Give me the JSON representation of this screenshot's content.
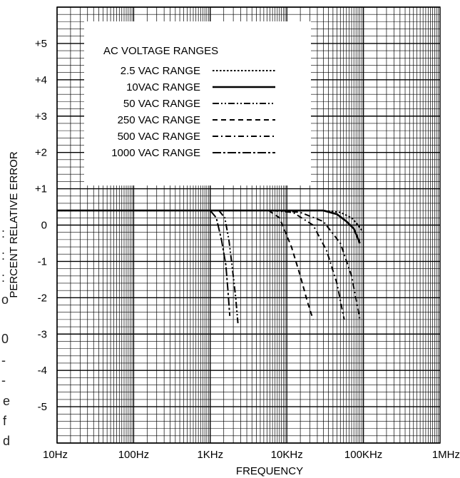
{
  "chart_data": {
    "type": "line",
    "title": "",
    "xlabel": "FREQUENCY",
    "ylabel": "PERCENT RELATIVE ERROR",
    "xscale": "log",
    "xlim": [
      10,
      1000000
    ],
    "ylim": [
      -6,
      6
    ],
    "grid": true,
    "x_tick_labels": [
      "10Hz",
      "100Hz",
      "1KHz",
      "10KHz",
      "100KHz",
      "1MHz"
    ],
    "x_tick_values": [
      10,
      100,
      1000,
      10000,
      100000,
      1000000
    ],
    "y_tick_labels": [
      "+5",
      "+4",
      "+3",
      "+2",
      "+1",
      "0",
      "-1",
      "-2",
      "-3",
      "-4",
      "-5"
    ],
    "y_tick_values": [
      5,
      4,
      3,
      2,
      1,
      0,
      -1,
      -2,
      -3,
      -4,
      -5
    ],
    "legend": {
      "title": "AC VOLTAGE RANGES",
      "placement": "top-left"
    },
    "series": [
      {
        "name": "2.5 VAC RANGE",
        "dash": "dotted",
        "x": [
          10,
          30000,
          50000,
          70000,
          85000,
          100000
        ],
        "y": [
          0.4,
          0.4,
          0.35,
          0.2,
          0.0,
          -0.2
        ]
      },
      {
        "name": "10VAC RANGE",
        "dash": "solid",
        "x": [
          10,
          30000,
          45000,
          60000,
          75000,
          90000
        ],
        "y": [
          0.4,
          0.4,
          0.3,
          0.1,
          -0.1,
          -0.5
        ]
      },
      {
        "name": "50 VAC RANGE",
        "dash": "dash-dot-dot",
        "x": [
          1300,
          1550,
          1750,
          1950,
          2150,
          2300
        ],
        "y": [
          0.4,
          0.2,
          -0.4,
          -1.2,
          -2.0,
          -2.7
        ]
      },
      {
        "name": "250 VAC RANGE",
        "dash": "dashed",
        "x": [
          5800,
          8000,
          11500,
          15000,
          18500,
          22000
        ],
        "y": [
          0.4,
          0.2,
          -0.6,
          -1.4,
          -2.1,
          -2.6
        ]
      },
      {
        "name": "500 VAC RANGE",
        "dash": "dash-dot",
        "x": [
          6500,
          12000,
          22000,
          33000,
          45000,
          56000
        ],
        "y": [
          0.4,
          0.35,
          0.0,
          -0.7,
          -1.6,
          -2.6
        ]
      },
      {
        "name": "1000 VAC RANGE",
        "dash": "long-dash-dot",
        "x": [
          1000,
          1200,
          1400,
          1600,
          1700,
          1800
        ],
        "y": [
          0.4,
          0.2,
          -0.4,
          -1.1,
          -1.8,
          -2.5
        ]
      },
      {
        "name": "",
        "dash": "dash-dot",
        "x": [
          8000,
          15000,
          30000,
          50000,
          70000,
          90000
        ],
        "y": [
          0.4,
          0.35,
          0.1,
          -0.5,
          -1.4,
          -2.6
        ]
      }
    ]
  },
  "margin_text": [
    ":",
    ":",
    ":",
    "o",
    "0",
    "-",
    "-",
    "e",
    "f",
    "d"
  ]
}
